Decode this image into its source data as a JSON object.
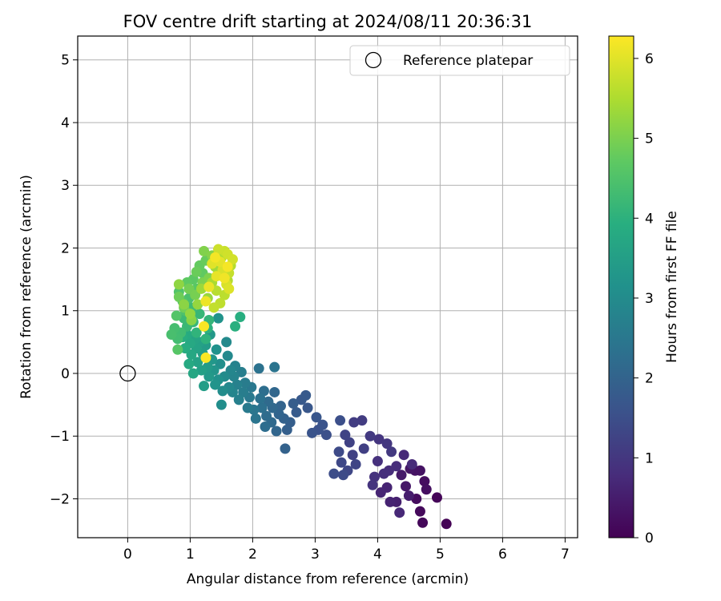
{
  "chart_data": {
    "type": "scatter",
    "title": "FOV centre drift starting at 2024/08/11 20:36:31",
    "xlabel": "Angular distance from reference (arcmin)",
    "ylabel": "Rotation from reference (arcmin)",
    "xlim": [
      -0.8,
      7.2
    ],
    "ylim": [
      -2.62,
      5.38
    ],
    "xticks": [
      0,
      1,
      2,
      3,
      4,
      5,
      6,
      7
    ],
    "yticks": [
      -2,
      -1,
      0,
      1,
      2,
      3,
      4,
      5
    ],
    "xtick_labels": [
      "0",
      "1",
      "2",
      "3",
      "4",
      "5",
      "6",
      "7"
    ],
    "ytick_labels": [
      "−2",
      "−1",
      "0",
      "1",
      "2",
      "3",
      "4",
      "5"
    ],
    "grid": true,
    "legend": {
      "position": "upper-right",
      "entries": [
        "Reference platepar"
      ]
    },
    "colorbar": {
      "label": "Hours from first FF file",
      "range": [
        0,
        6.28
      ],
      "colormap": "viridis",
      "ticks": [
        0,
        1,
        2,
        3,
        4,
        5,
        6
      ],
      "tick_labels": [
        "0",
        "1",
        "2",
        "3",
        "4",
        "5",
        "6"
      ]
    },
    "reference": {
      "x": 0,
      "y": 0,
      "label": "Reference platepar"
    },
    "series": [
      {
        "name": "",
        "points": [
          [
            5.1,
            -2.4,
            0.03
          ],
          [
            4.95,
            -1.98,
            0.08
          ],
          [
            4.72,
            -2.38,
            0.1
          ],
          [
            4.68,
            -2.2,
            0.15
          ],
          [
            4.62,
            -2.0,
            0.2
          ],
          [
            4.75,
            -1.72,
            0.22
          ],
          [
            4.78,
            -1.85,
            0.25
          ],
          [
            4.6,
            -1.55,
            0.28
          ],
          [
            4.68,
            -1.55,
            0.3
          ],
          [
            4.52,
            -1.52,
            0.35
          ],
          [
            4.45,
            -1.8,
            0.4
          ],
          [
            4.38,
            -1.62,
            0.45
          ],
          [
            4.5,
            -1.95,
            0.5
          ],
          [
            4.3,
            -2.05,
            0.55
          ],
          [
            4.2,
            -2.05,
            0.6
          ],
          [
            4.15,
            -1.82,
            0.62
          ],
          [
            4.05,
            -1.9,
            0.65
          ],
          [
            4.35,
            -2.22,
            0.7
          ],
          [
            4.42,
            -1.3,
            0.72
          ],
          [
            4.55,
            -1.45,
            0.75
          ],
          [
            4.3,
            -1.48,
            0.78
          ],
          [
            4.18,
            -1.55,
            0.8
          ],
          [
            4.1,
            -1.6,
            0.83
          ],
          [
            4.0,
            -1.4,
            0.86
          ],
          [
            3.95,
            -1.65,
            0.9
          ],
          [
            3.92,
            -1.78,
            0.93
          ],
          [
            4.02,
            -1.05,
            0.96
          ],
          [
            4.15,
            -1.12,
            1.0
          ],
          [
            4.22,
            -1.25,
            1.03
          ],
          [
            3.88,
            -1.0,
            1.06
          ],
          [
            3.75,
            -0.75,
            1.1
          ],
          [
            3.62,
            -0.78,
            1.13
          ],
          [
            3.78,
            -1.2,
            1.16
          ],
          [
            3.6,
            -1.3,
            1.2
          ],
          [
            3.55,
            -1.1,
            1.23
          ],
          [
            3.48,
            -0.98,
            1.26
          ],
          [
            3.65,
            -1.45,
            1.3
          ],
          [
            3.52,
            -1.55,
            1.33
          ],
          [
            3.42,
            -1.42,
            1.36
          ],
          [
            3.38,
            -1.25,
            1.4
          ],
          [
            3.45,
            -1.62,
            1.43
          ],
          [
            3.3,
            -1.6,
            1.46
          ],
          [
            3.4,
            -0.75,
            1.5
          ],
          [
            3.18,
            -0.98,
            1.53
          ],
          [
            3.05,
            -0.9,
            1.56
          ],
          [
            3.12,
            -0.82,
            1.6
          ],
          [
            2.95,
            -0.95,
            1.63
          ],
          [
            3.02,
            -0.7,
            1.66
          ],
          [
            2.88,
            -0.55,
            1.7
          ],
          [
            2.78,
            -0.42,
            1.73
          ],
          [
            2.85,
            -0.35,
            1.76
          ],
          [
            2.7,
            -0.62,
            1.8
          ],
          [
            2.65,
            -0.48,
            1.83
          ],
          [
            2.6,
            -0.78,
            1.86
          ],
          [
            2.55,
            -0.9,
            1.9
          ],
          [
            2.5,
            -0.72,
            1.93
          ],
          [
            2.52,
            -1.2,
            1.96
          ],
          [
            2.45,
            -0.52,
            2.0
          ],
          [
            2.42,
            -0.65,
            2.02
          ],
          [
            2.38,
            -0.92,
            2.05
          ],
          [
            2.35,
            -0.3,
            2.08
          ],
          [
            2.32,
            -0.55,
            2.1
          ],
          [
            2.3,
            -0.78,
            2.13
          ],
          [
            2.25,
            -0.45,
            2.16
          ],
          [
            2.22,
            -0.68,
            2.2
          ],
          [
            2.2,
            -0.85,
            2.23
          ],
          [
            2.18,
            -0.28,
            2.26
          ],
          [
            2.15,
            -0.55,
            2.3
          ],
          [
            2.12,
            -0.4,
            2.33
          ],
          [
            2.1,
            0.08,
            2.36
          ],
          [
            2.35,
            0.1,
            2.4
          ],
          [
            2.05,
            -0.72,
            2.43
          ],
          [
            2.02,
            -0.58,
            2.46
          ],
          [
            1.98,
            -0.22,
            2.5
          ],
          [
            1.95,
            -0.38,
            2.53
          ],
          [
            1.92,
            -0.55,
            2.56
          ],
          [
            1.88,
            -0.15,
            2.6
          ],
          [
            1.85,
            -0.3,
            2.63
          ],
          [
            1.82,
            0.02,
            2.66
          ],
          [
            1.78,
            -0.42,
            2.7
          ],
          [
            1.75,
            -0.18,
            2.73
          ],
          [
            1.72,
            0.12,
            2.76
          ],
          [
            1.7,
            -0.05,
            2.8
          ],
          [
            1.68,
            -0.3,
            2.83
          ],
          [
            1.65,
            0.05,
            2.86
          ],
          [
            1.62,
            -0.22,
            2.9
          ],
          [
            1.6,
            0.28,
            2.93
          ],
          [
            1.58,
            0.5,
            2.96
          ],
          [
            1.55,
            -0.05,
            3.0
          ],
          [
            1.52,
            -0.28,
            3.03
          ],
          [
            1.5,
            -0.5,
            3.06
          ],
          [
            1.48,
            0.15,
            3.1
          ],
          [
            1.45,
            -0.1,
            3.13
          ],
          [
            1.42,
            0.38,
            3.16
          ],
          [
            1.45,
            0.88,
            3.2
          ],
          [
            1.4,
            -0.18,
            3.23
          ],
          [
            1.38,
            0.05,
            3.26
          ],
          [
            1.35,
            0.22,
            3.3
          ],
          [
            1.32,
            0.62,
            3.33
          ],
          [
            1.3,
            -0.05,
            3.36
          ],
          [
            1.28,
            0.1,
            3.4
          ],
          [
            1.25,
            0.45,
            3.43
          ],
          [
            1.22,
            -0.2,
            3.46
          ],
          [
            1.2,
            0.32,
            3.5
          ],
          [
            1.18,
            0.05,
            3.53
          ],
          [
            1.15,
            0.5,
            3.56
          ],
          [
            1.12,
            0.18,
            3.6
          ],
          [
            1.1,
            0.4,
            3.63
          ],
          [
            1.08,
            0.55,
            3.66
          ],
          [
            1.05,
            0.0,
            3.7
          ],
          [
            1.02,
            0.3,
            3.73
          ],
          [
            1.0,
            0.48,
            3.76
          ],
          [
            0.98,
            0.15,
            3.8
          ],
          [
            0.95,
            0.62,
            3.83
          ],
          [
            0.92,
            0.4,
            3.86
          ],
          [
            0.88,
            0.58,
            3.9
          ],
          [
            1.8,
            0.9,
            3.93
          ],
          [
            1.72,
            0.75,
            3.96
          ],
          [
            1.28,
            0.72,
            4.0
          ],
          [
            1.25,
            0.55,
            4.03
          ],
          [
            1.1,
            0.65,
            4.06
          ],
          [
            1.3,
            0.85,
            4.1
          ],
          [
            1.05,
            0.82,
            4.13
          ],
          [
            1.15,
            0.95,
            4.16
          ],
          [
            0.95,
            0.75,
            4.2
          ],
          [
            0.9,
            0.88,
            4.23
          ],
          [
            1.02,
            1.05,
            4.26
          ],
          [
            0.85,
            0.65,
            4.3
          ],
          [
            0.8,
            0.55,
            4.33
          ],
          [
            0.75,
            0.72,
            4.36
          ],
          [
            0.7,
            0.62,
            4.4
          ],
          [
            0.98,
            1.2,
            4.43
          ],
          [
            0.92,
            1.0,
            4.46
          ],
          [
            0.88,
            1.15,
            4.5
          ],
          [
            0.82,
            1.3,
            4.53
          ],
          [
            0.78,
            0.92,
            4.56
          ],
          [
            0.8,
            0.38,
            4.6
          ],
          [
            1.1,
            1.35,
            4.63
          ],
          [
            1.05,
            1.5,
            4.66
          ],
          [
            0.95,
            1.45,
            4.7
          ],
          [
            1.2,
            1.6,
            4.73
          ],
          [
            1.15,
            1.72,
            4.76
          ],
          [
            1.25,
            1.8,
            4.8
          ],
          [
            1.1,
            1.62,
            4.83
          ],
          [
            0.82,
            1.22,
            4.86
          ],
          [
            0.9,
            1.05,
            4.9
          ],
          [
            0.98,
            1.35,
            4.93
          ],
          [
            1.08,
            1.25,
            4.96
          ],
          [
            1.2,
            1.45,
            5.0
          ],
          [
            1.3,
            1.52,
            5.03
          ],
          [
            1.22,
            1.95,
            5.06
          ],
          [
            1.35,
            1.88,
            5.1
          ],
          [
            1.02,
            0.85,
            5.13
          ],
          [
            0.9,
            1.1,
            5.16
          ],
          [
            0.82,
            1.42,
            5.2
          ],
          [
            1.0,
            0.95,
            5.23
          ],
          [
            1.12,
            1.1,
            5.26
          ],
          [
            1.28,
            1.2,
            5.3
          ],
          [
            1.18,
            1.35,
            5.33
          ],
          [
            1.4,
            1.7,
            5.36
          ],
          [
            1.45,
            1.6,
            5.4
          ],
          [
            1.52,
            1.55,
            5.43
          ],
          [
            1.35,
            1.45,
            5.46
          ],
          [
            1.5,
            1.85,
            5.5
          ],
          [
            1.6,
            1.48,
            5.53
          ],
          [
            1.65,
            1.72,
            5.56
          ],
          [
            1.42,
            1.32,
            5.6
          ],
          [
            1.55,
            1.25,
            5.63
          ],
          [
            1.48,
            1.12,
            5.66
          ],
          [
            1.38,
            1.05,
            5.7
          ],
          [
            1.62,
            1.6,
            5.73
          ],
          [
            1.55,
            1.95,
            5.76
          ],
          [
            1.45,
            1.98,
            5.8
          ],
          [
            1.6,
            1.9,
            5.83
          ],
          [
            1.68,
            1.82,
            5.86
          ],
          [
            1.58,
            1.42,
            5.9
          ],
          [
            1.52,
            1.65,
            5.93
          ],
          [
            1.62,
            1.35,
            5.96
          ],
          [
            1.35,
            1.75,
            6.0
          ],
          [
            1.48,
            1.78,
            6.03
          ],
          [
            1.42,
            1.55,
            6.06
          ],
          [
            1.3,
            1.38,
            6.09
          ],
          [
            1.25,
            1.15,
            6.12
          ],
          [
            1.55,
            1.52,
            6.15
          ],
          [
            1.4,
            1.85,
            6.18
          ],
          [
            1.6,
            1.7,
            6.2
          ],
          [
            1.22,
            0.75,
            6.22
          ],
          [
            1.25,
            0.25,
            6.25
          ]
        ]
      }
    ]
  }
}
